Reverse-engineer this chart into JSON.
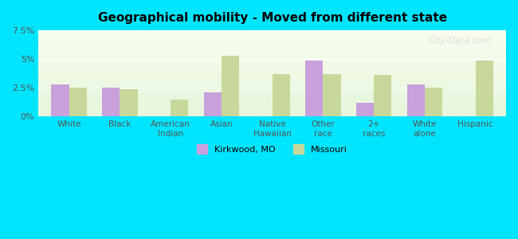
{
  "title": "Geographical mobility - Moved from different state",
  "categories": [
    "White",
    "Black",
    "American\nIndian",
    "Asian",
    "Native\nHawaiian",
    "Other\nrace",
    "2+\nraces",
    "White\nalone",
    "Hispanic"
  ],
  "kirkwood_values": [
    2.8,
    2.5,
    0,
    2.1,
    0,
    4.9,
    1.2,
    2.8,
    0
  ],
  "missouri_values": [
    2.5,
    2.4,
    1.5,
    5.3,
    3.7,
    3.7,
    3.6,
    2.5,
    4.9
  ],
  "kirkwood_color": "#c9a0dc",
  "missouri_color": "#c8d89a",
  "background_color": "#00e5ff",
  "plot_bg_top": "#f0f8e8",
  "plot_bg_bottom": "#e8f8f0",
  "ylim": [
    0,
    7.5
  ],
  "yticks": [
    0,
    2.5,
    5.0,
    7.5
  ],
  "ytick_labels": [
    "0%",
    "2.5%",
    "5%",
    "7.5%"
  ],
  "bar_width": 0.35,
  "legend_kirkwood": "Kirkwood, MO",
  "legend_missouri": "Missouri",
  "watermark": "City-Data.com"
}
